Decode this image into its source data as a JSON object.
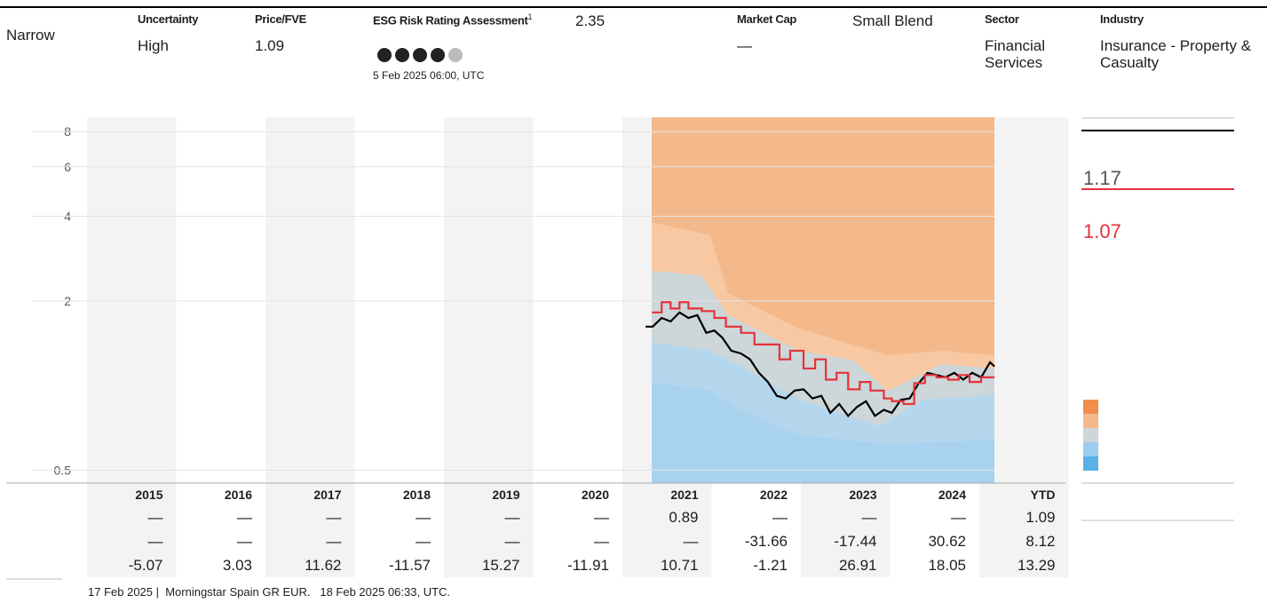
{
  "header": {
    "moat": "Narrow",
    "uncertainty_label": "Uncertainty",
    "uncertainty": "High",
    "price_fve_label": "Price/FVE",
    "price_fve": 1.09,
    "esg_label": "ESG Risk Rating Assessment",
    "esg_note": "1",
    "esg_date": "5 Feb 2025 06:00, UTC",
    "esg_value": 2.35,
    "market_cap_label": "Market Cap",
    "market_cap": "—",
    "style": "Small Blend",
    "sector_label": "Sector",
    "sector": "Financial Services",
    "industry_label": "Industry",
    "industry": "Insurance - Property & Casualty"
  },
  "chart_data": {
    "type": "line",
    "log_scale": true,
    "ylim": [
      0.45,
      9
    ],
    "yticks": [
      0.5,
      2,
      4,
      6,
      8
    ],
    "xlim": [
      2015,
      2026
    ],
    "grid": true,
    "series": [
      {
        "color": "#000000",
        "current": 1.17,
        "x": [
          2021.26,
          2021.34,
          2021.44,
          2021.54,
          2021.64,
          2021.74,
          2021.84,
          2021.94,
          2022.03,
          2022.12,
          2022.22,
          2022.33,
          2022.43,
          2022.53,
          2022.63,
          2022.73,
          2022.83,
          2022.93,
          2023.03,
          2023.13,
          2023.23,
          2023.33,
          2023.43,
          2023.53,
          2023.63,
          2023.73,
          2023.83,
          2023.93,
          2024.02,
          2024.12,
          2024.22,
          2024.32,
          2024.42,
          2024.52,
          2024.62,
          2024.72,
          2024.82,
          2024.92,
          2025.02,
          2025.12,
          2025.17
        ],
        "values": [
          1.62,
          1.62,
          1.74,
          1.69,
          1.82,
          1.74,
          1.78,
          1.54,
          1.57,
          1.48,
          1.33,
          1.3,
          1.24,
          1.11,
          1.03,
          0.92,
          0.9,
          0.96,
          0.97,
          0.9,
          0.92,
          0.8,
          0.86,
          0.78,
          0.84,
          0.88,
          0.78,
          0.82,
          0.8,
          0.89,
          0.9,
          1.02,
          1.11,
          1.09,
          1.07,
          1.11,
          1.05,
          1.11,
          1.07,
          1.21,
          1.17
        ]
      },
      {
        "color": "#e5323b",
        "current": 1.07,
        "step": true,
        "x": [
          2021.33,
          2021.44,
          2021.54,
          2021.64,
          2021.74,
          2021.89,
          2022.03,
          2022.16,
          2022.33,
          2022.48,
          2022.6,
          2022.76,
          2022.88,
          2023.03,
          2023.16,
          2023.28,
          2023.4,
          2023.53,
          2023.66,
          2023.78,
          2023.93,
          2024.02,
          2024.15,
          2024.27,
          2024.39,
          2024.52,
          2024.65,
          2024.77,
          2024.89,
          2025.02,
          2025.17
        ],
        "values": [
          1.82,
          1.98,
          1.88,
          1.98,
          1.88,
          1.84,
          1.74,
          1.62,
          1.54,
          1.4,
          1.4,
          1.24,
          1.33,
          1.15,
          1.24,
          1.05,
          1.11,
          0.97,
          1.03,
          0.96,
          0.9,
          0.88,
          0.86,
          1.02,
          1.09,
          1.07,
          1.05,
          1.09,
          1.03,
          1.07,
          1.07
        ]
      }
    ]
  },
  "table": {
    "columns": [
      2015,
      2016,
      2017,
      2018,
      2019,
      2020,
      2021,
      2022,
      2023,
      2024,
      "YTD"
    ],
    "rows": [
      [
        "—",
        "—",
        "—",
        "—",
        "—",
        "—",
        0.89,
        "—",
        "—",
        "—",
        1.09
      ],
      [
        "—",
        "—",
        "—",
        "—",
        "—",
        "—",
        "—",
        -31.66,
        -17.44,
        30.62,
        8.12
      ],
      [
        -5.07,
        3.03,
        11.62,
        -11.57,
        15.27,
        -11.91,
        10.71,
        -1.21,
        26.91,
        18.05,
        13.29
      ]
    ]
  },
  "footer": "17 Feb 2025 |  Morningstar Spain GR EUR.   18 Feb 2025 06:33, UTC."
}
